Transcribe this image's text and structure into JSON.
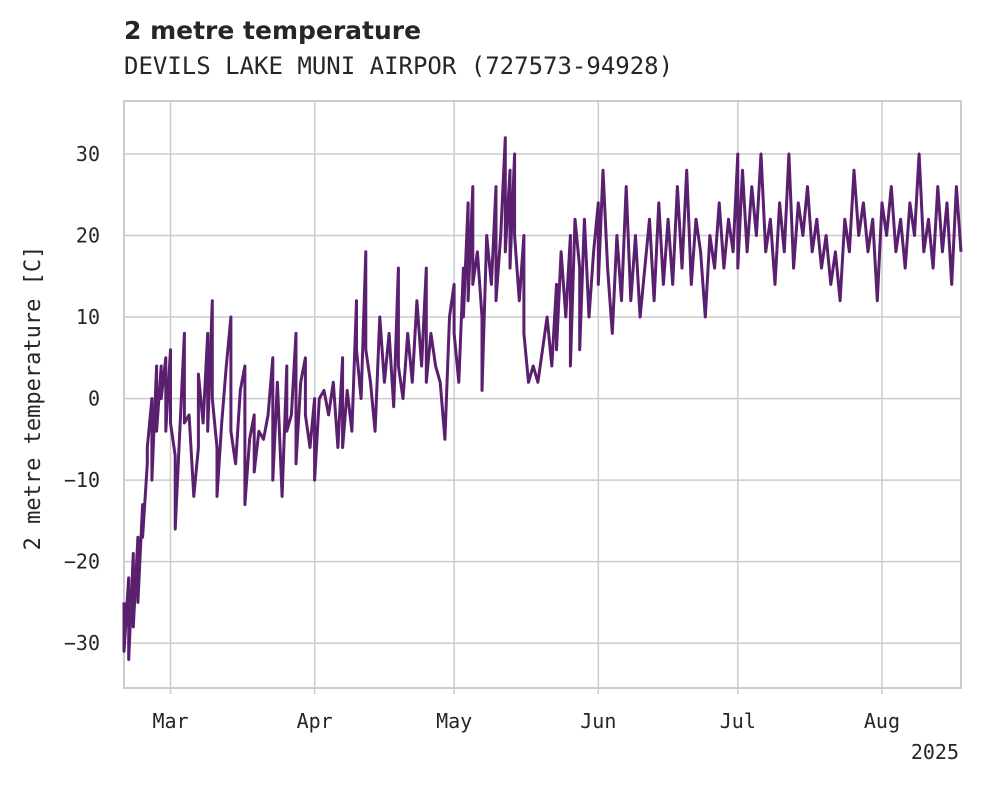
{
  "chart_data": {
    "type": "line",
    "title": "2 metre temperature",
    "subtitle": "DEVILS LAKE MUNI AIRPOR (727573-94928)",
    "ylabel": "2 metre temperature [C]",
    "xlabel": "",
    "x_year_label": "2025",
    "xlim": [
      "2025-02-19",
      "2025-08-18"
    ],
    "ylim": [
      -35.5,
      36.5
    ],
    "y_ticks": [
      -30,
      -20,
      -10,
      0,
      10,
      20,
      30
    ],
    "x_ticks": [
      {
        "date": "2025-03-01",
        "label": "Mar"
      },
      {
        "date": "2025-04-01",
        "label": "Apr"
      },
      {
        "date": "2025-05-01",
        "label": "May"
      },
      {
        "date": "2025-06-01",
        "label": "Jun"
      },
      {
        "date": "2025-07-01",
        "label": "Jul"
      },
      {
        "date": "2025-08-01",
        "label": "Aug"
      }
    ],
    "grid": true,
    "series": [
      {
        "color": "#5a1f6e",
        "points": [
          [
            "2025-02-19",
            -25
          ],
          [
            "2025-02-19",
            -31
          ],
          [
            "2025-02-20",
            -22
          ],
          [
            "2025-02-20",
            -32
          ],
          [
            "2025-02-21",
            -19
          ],
          [
            "2025-02-21",
            -28
          ],
          [
            "2025-02-22",
            -17
          ],
          [
            "2025-02-22",
            -25
          ],
          [
            "2025-02-23",
            -13
          ],
          [
            "2025-02-23",
            -17
          ],
          [
            "2025-02-24",
            -8
          ],
          [
            "2025-02-24",
            -6
          ],
          [
            "2025-02-25",
            0
          ],
          [
            "2025-02-25",
            -10
          ],
          [
            "2025-02-26",
            4
          ],
          [
            "2025-02-26",
            -4
          ],
          [
            "2025-02-27",
            4
          ],
          [
            "2025-02-27",
            0
          ],
          [
            "2025-02-28",
            5
          ],
          [
            "2025-02-28",
            -4
          ],
          [
            "2025-03-01",
            6
          ],
          [
            "2025-03-01",
            -3
          ],
          [
            "2025-03-02",
            -7
          ],
          [
            "2025-03-02",
            -16
          ],
          [
            "2025-03-03",
            -4
          ],
          [
            "2025-03-04",
            8
          ],
          [
            "2025-03-04",
            -3
          ],
          [
            "2025-03-05",
            -2
          ],
          [
            "2025-03-06",
            -12
          ],
          [
            "2025-03-07",
            -6
          ],
          [
            "2025-03-07",
            3
          ],
          [
            "2025-03-08",
            -3
          ],
          [
            "2025-03-09",
            8
          ],
          [
            "2025-03-09",
            -4
          ],
          [
            "2025-03-10",
            12
          ],
          [
            "2025-03-10",
            0
          ],
          [
            "2025-03-11",
            -6
          ],
          [
            "2025-03-11",
            -12
          ],
          [
            "2025-03-12",
            -3
          ],
          [
            "2025-03-13",
            4
          ],
          [
            "2025-03-14",
            10
          ],
          [
            "2025-03-14",
            -4
          ],
          [
            "2025-03-15",
            -8
          ],
          [
            "2025-03-16",
            1
          ],
          [
            "2025-03-17",
            4
          ],
          [
            "2025-03-17",
            -13
          ],
          [
            "2025-03-18",
            -5
          ],
          [
            "2025-03-19",
            -2
          ],
          [
            "2025-03-19",
            -9
          ],
          [
            "2025-03-20",
            -4
          ],
          [
            "2025-03-21",
            -5
          ],
          [
            "2025-03-22",
            -2
          ],
          [
            "2025-03-23",
            5
          ],
          [
            "2025-03-23",
            -10
          ],
          [
            "2025-03-24",
            2
          ],
          [
            "2025-03-25",
            -12
          ],
          [
            "2025-03-26",
            4
          ],
          [
            "2025-03-26",
            -4
          ],
          [
            "2025-03-27",
            -2
          ],
          [
            "2025-03-28",
            8
          ],
          [
            "2025-03-28",
            -8
          ],
          [
            "2025-03-29",
            2
          ],
          [
            "2025-03-30",
            5
          ],
          [
            "2025-03-30",
            -2
          ],
          [
            "2025-03-31",
            -6
          ],
          [
            "2025-04-01",
            0
          ],
          [
            "2025-04-01",
            -10
          ],
          [
            "2025-04-02",
            0
          ],
          [
            "2025-04-03",
            1
          ],
          [
            "2025-04-04",
            -2
          ],
          [
            "2025-04-05",
            2
          ],
          [
            "2025-04-06",
            -6
          ],
          [
            "2025-04-07",
            5
          ],
          [
            "2025-04-07",
            -6
          ],
          [
            "2025-04-08",
            1
          ],
          [
            "2025-04-09",
            -4
          ],
          [
            "2025-04-10",
            12
          ],
          [
            "2025-04-10",
            6
          ],
          [
            "2025-04-11",
            0
          ],
          [
            "2025-04-12",
            18
          ],
          [
            "2025-04-12",
            6
          ],
          [
            "2025-04-13",
            2
          ],
          [
            "2025-04-14",
            -4
          ],
          [
            "2025-04-15",
            10
          ],
          [
            "2025-04-16",
            2
          ],
          [
            "2025-04-17",
            8
          ],
          [
            "2025-04-18",
            -1
          ],
          [
            "2025-04-19",
            16
          ],
          [
            "2025-04-19",
            4
          ],
          [
            "2025-04-20",
            0
          ],
          [
            "2025-04-21",
            8
          ],
          [
            "2025-04-22",
            2
          ],
          [
            "2025-04-23",
            12
          ],
          [
            "2025-04-24",
            4
          ],
          [
            "2025-04-25",
            16
          ],
          [
            "2025-04-25",
            2
          ],
          [
            "2025-04-26",
            8
          ],
          [
            "2025-04-27",
            4
          ],
          [
            "2025-04-28",
            2
          ],
          [
            "2025-04-29",
            -5
          ],
          [
            "2025-04-30",
            10
          ],
          [
            "2025-05-01",
            14
          ],
          [
            "2025-05-01",
            8
          ],
          [
            "2025-05-02",
            2
          ],
          [
            "2025-05-03",
            16
          ],
          [
            "2025-05-03",
            10
          ],
          [
            "2025-05-04",
            24
          ],
          [
            "2025-05-04",
            12
          ],
          [
            "2025-05-05",
            26
          ],
          [
            "2025-05-05",
            14
          ],
          [
            "2025-05-06",
            18
          ],
          [
            "2025-05-07",
            10
          ],
          [
            "2025-05-07",
            1
          ],
          [
            "2025-05-08",
            20
          ],
          [
            "2025-05-09",
            14
          ],
          [
            "2025-05-10",
            26
          ],
          [
            "2025-05-10",
            12
          ],
          [
            "2025-05-11",
            20
          ],
          [
            "2025-05-12",
            32
          ],
          [
            "2025-05-12",
            18
          ],
          [
            "2025-05-13",
            28
          ],
          [
            "2025-05-13",
            16
          ],
          [
            "2025-05-14",
            30
          ],
          [
            "2025-05-14",
            20
          ],
          [
            "2025-05-15",
            12
          ],
          [
            "2025-05-16",
            20
          ],
          [
            "2025-05-16",
            8
          ],
          [
            "2025-05-17",
            2
          ],
          [
            "2025-05-18",
            4
          ],
          [
            "2025-05-19",
            2
          ],
          [
            "2025-05-20",
            6
          ],
          [
            "2025-05-21",
            10
          ],
          [
            "2025-05-22",
            4
          ],
          [
            "2025-05-23",
            14
          ],
          [
            "2025-05-23",
            6
          ],
          [
            "2025-05-24",
            18
          ],
          [
            "2025-05-25",
            10
          ],
          [
            "2025-05-26",
            20
          ],
          [
            "2025-05-26",
            4
          ],
          [
            "2025-05-27",
            22
          ],
          [
            "2025-05-28",
            16
          ],
          [
            "2025-05-28",
            6
          ],
          [
            "2025-05-29",
            22
          ],
          [
            "2025-05-30",
            10
          ],
          [
            "2025-05-31",
            18
          ],
          [
            "2025-06-01",
            24
          ],
          [
            "2025-06-01",
            14
          ],
          [
            "2025-06-02",
            28
          ],
          [
            "2025-06-03",
            16
          ],
          [
            "2025-06-04",
            8
          ],
          [
            "2025-06-05",
            20
          ],
          [
            "2025-06-06",
            12
          ],
          [
            "2025-06-07",
            26
          ],
          [
            "2025-06-08",
            12
          ],
          [
            "2025-06-09",
            20
          ],
          [
            "2025-06-10",
            10
          ],
          [
            "2025-06-11",
            16
          ],
          [
            "2025-06-12",
            22
          ],
          [
            "2025-06-13",
            12
          ],
          [
            "2025-06-14",
            24
          ],
          [
            "2025-06-15",
            14
          ],
          [
            "2025-06-16",
            22
          ],
          [
            "2025-06-17",
            14
          ],
          [
            "2025-06-18",
            26
          ],
          [
            "2025-06-19",
            16
          ],
          [
            "2025-06-20",
            28
          ],
          [
            "2025-06-21",
            14
          ],
          [
            "2025-06-22",
            22
          ],
          [
            "2025-06-23",
            18
          ],
          [
            "2025-06-24",
            10
          ],
          [
            "2025-06-25",
            20
          ],
          [
            "2025-06-26",
            16
          ],
          [
            "2025-06-27",
            24
          ],
          [
            "2025-06-28",
            16
          ],
          [
            "2025-06-29",
            22
          ],
          [
            "2025-06-30",
            18
          ],
          [
            "2025-07-01",
            30
          ],
          [
            "2025-07-01",
            16
          ],
          [
            "2025-07-02",
            28
          ],
          [
            "2025-07-03",
            18
          ],
          [
            "2025-07-04",
            26
          ],
          [
            "2025-07-05",
            20
          ],
          [
            "2025-07-06",
            30
          ],
          [
            "2025-07-07",
            18
          ],
          [
            "2025-07-08",
            22
          ],
          [
            "2025-07-09",
            14
          ],
          [
            "2025-07-10",
            24
          ],
          [
            "2025-07-11",
            18
          ],
          [
            "2025-07-12",
            30
          ],
          [
            "2025-07-13",
            16
          ],
          [
            "2025-07-14",
            24
          ],
          [
            "2025-07-15",
            20
          ],
          [
            "2025-07-16",
            26
          ],
          [
            "2025-07-17",
            18
          ],
          [
            "2025-07-18",
            22
          ],
          [
            "2025-07-19",
            16
          ],
          [
            "2025-07-20",
            20
          ],
          [
            "2025-07-21",
            14
          ],
          [
            "2025-07-22",
            18
          ],
          [
            "2025-07-23",
            12
          ],
          [
            "2025-07-24",
            22
          ],
          [
            "2025-07-25",
            18
          ],
          [
            "2025-07-26",
            28
          ],
          [
            "2025-07-27",
            20
          ],
          [
            "2025-07-28",
            24
          ],
          [
            "2025-07-29",
            18
          ],
          [
            "2025-07-30",
            22
          ],
          [
            "2025-07-31",
            12
          ],
          [
            "2025-08-01",
            24
          ],
          [
            "2025-08-02",
            20
          ],
          [
            "2025-08-03",
            26
          ],
          [
            "2025-08-04",
            18
          ],
          [
            "2025-08-05",
            22
          ],
          [
            "2025-08-06",
            16
          ],
          [
            "2025-08-07",
            24
          ],
          [
            "2025-08-08",
            20
          ],
          [
            "2025-08-09",
            30
          ],
          [
            "2025-08-10",
            18
          ],
          [
            "2025-08-11",
            22
          ],
          [
            "2025-08-12",
            16
          ],
          [
            "2025-08-13",
            26
          ],
          [
            "2025-08-14",
            18
          ],
          [
            "2025-08-15",
            24
          ],
          [
            "2025-08-16",
            14
          ],
          [
            "2025-08-17",
            26
          ],
          [
            "2025-08-18",
            18
          ]
        ]
      }
    ]
  }
}
